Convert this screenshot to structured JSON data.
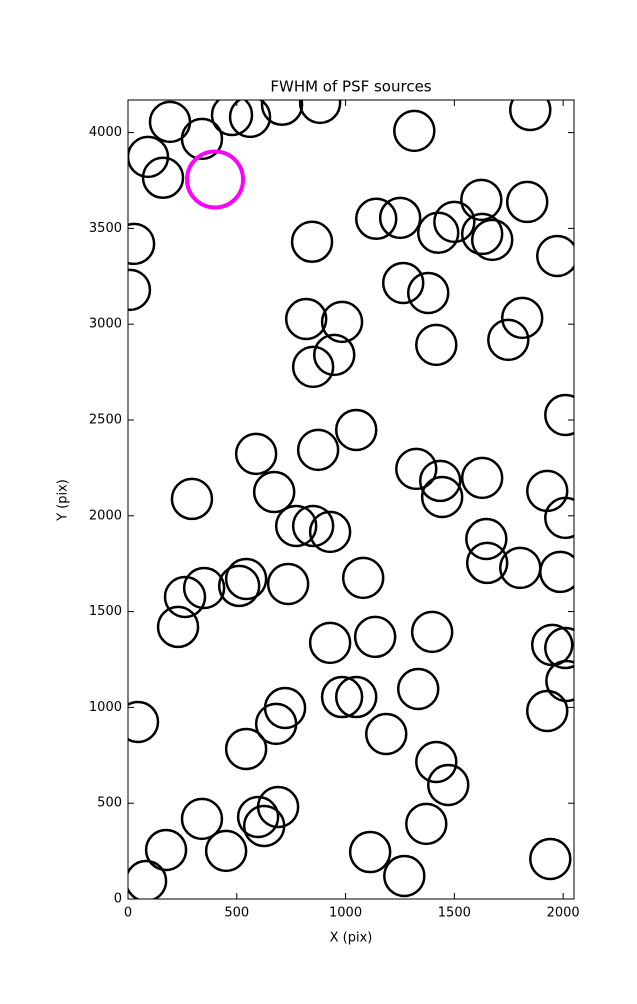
{
  "chart_data": {
    "type": "scatter",
    "title": "FWHM of PSF sources",
    "x_label": "X (pix)",
    "y_label": "Y (pix)",
    "xlim": [
      0,
      2050
    ],
    "ylim": [
      0,
      4170
    ],
    "xticks": [
      0,
      500,
      1000,
      1500,
      2000
    ],
    "yticks": [
      0,
      500,
      1000,
      1500,
      2000,
      2500,
      3000,
      3500,
      4000
    ],
    "series": [
      {
        "color": "#000000",
        "x": [
          193,
          92,
          161,
          340,
          478,
          561,
          708,
          883,
          1316,
          1849,
          28,
          9,
          846,
          1141,
          1251,
          1500,
          1426,
          1624,
          1628,
          1674,
          1835,
          1973,
          1265,
          1380,
          819,
          984,
          948,
          851,
          1417,
          1748,
          1812,
          2010,
          1049,
          589,
          874,
          672,
          294,
          773,
          851,
          929,
          1325,
          1435,
          1444,
          1628,
          1927,
          2010,
          1647,
          1651,
          1803,
          1987,
          1081,
          736,
          543,
          511,
          350,
          262,
          230,
          929,
          1136,
          1398,
          1950,
          2010,
          2015,
          1927,
          46,
          722,
          681,
          984,
          1049,
          1334,
          1187,
          543,
          1417,
          1472,
          1371,
          1113,
          1270,
          1941,
          690,
          626,
          598,
          340,
          175,
          451,
          83
        ],
        "y": [
          4056,
          3873,
          3764,
          3967,
          4092,
          4082,
          4145,
          4155,
          4009,
          4118,
          3419,
          3179,
          3430,
          3550,
          3555,
          3534,
          3477,
          3649,
          3471,
          3440,
          3638,
          3356,
          3215,
          3163,
          3027,
          3012,
          2840,
          2777,
          2892,
          2918,
          3033,
          2526,
          2448,
          2323,
          2344,
          2124,
          2088,
          1947,
          1947,
          1916,
          2245,
          2182,
          2098,
          2198,
          2130,
          1989,
          1879,
          1754,
          1728,
          1707,
          1676,
          1644,
          1670,
          1634,
          1623,
          1576,
          1420,
          1337,
          1368,
          1394,
          1326,
          1310,
          1138,
          981,
          924,
          997,
          914,
          1054,
          1054,
          1096,
          861,
          783,
          715,
          595,
          392,
          245,
          120,
          209,
          480,
          381,
          428,
          418,
          256,
          251,
          94
        ]
      },
      {
        "color": "#ff00ff",
        "x": [
          400
        ],
        "y": [
          3755
        ]
      }
    ]
  }
}
